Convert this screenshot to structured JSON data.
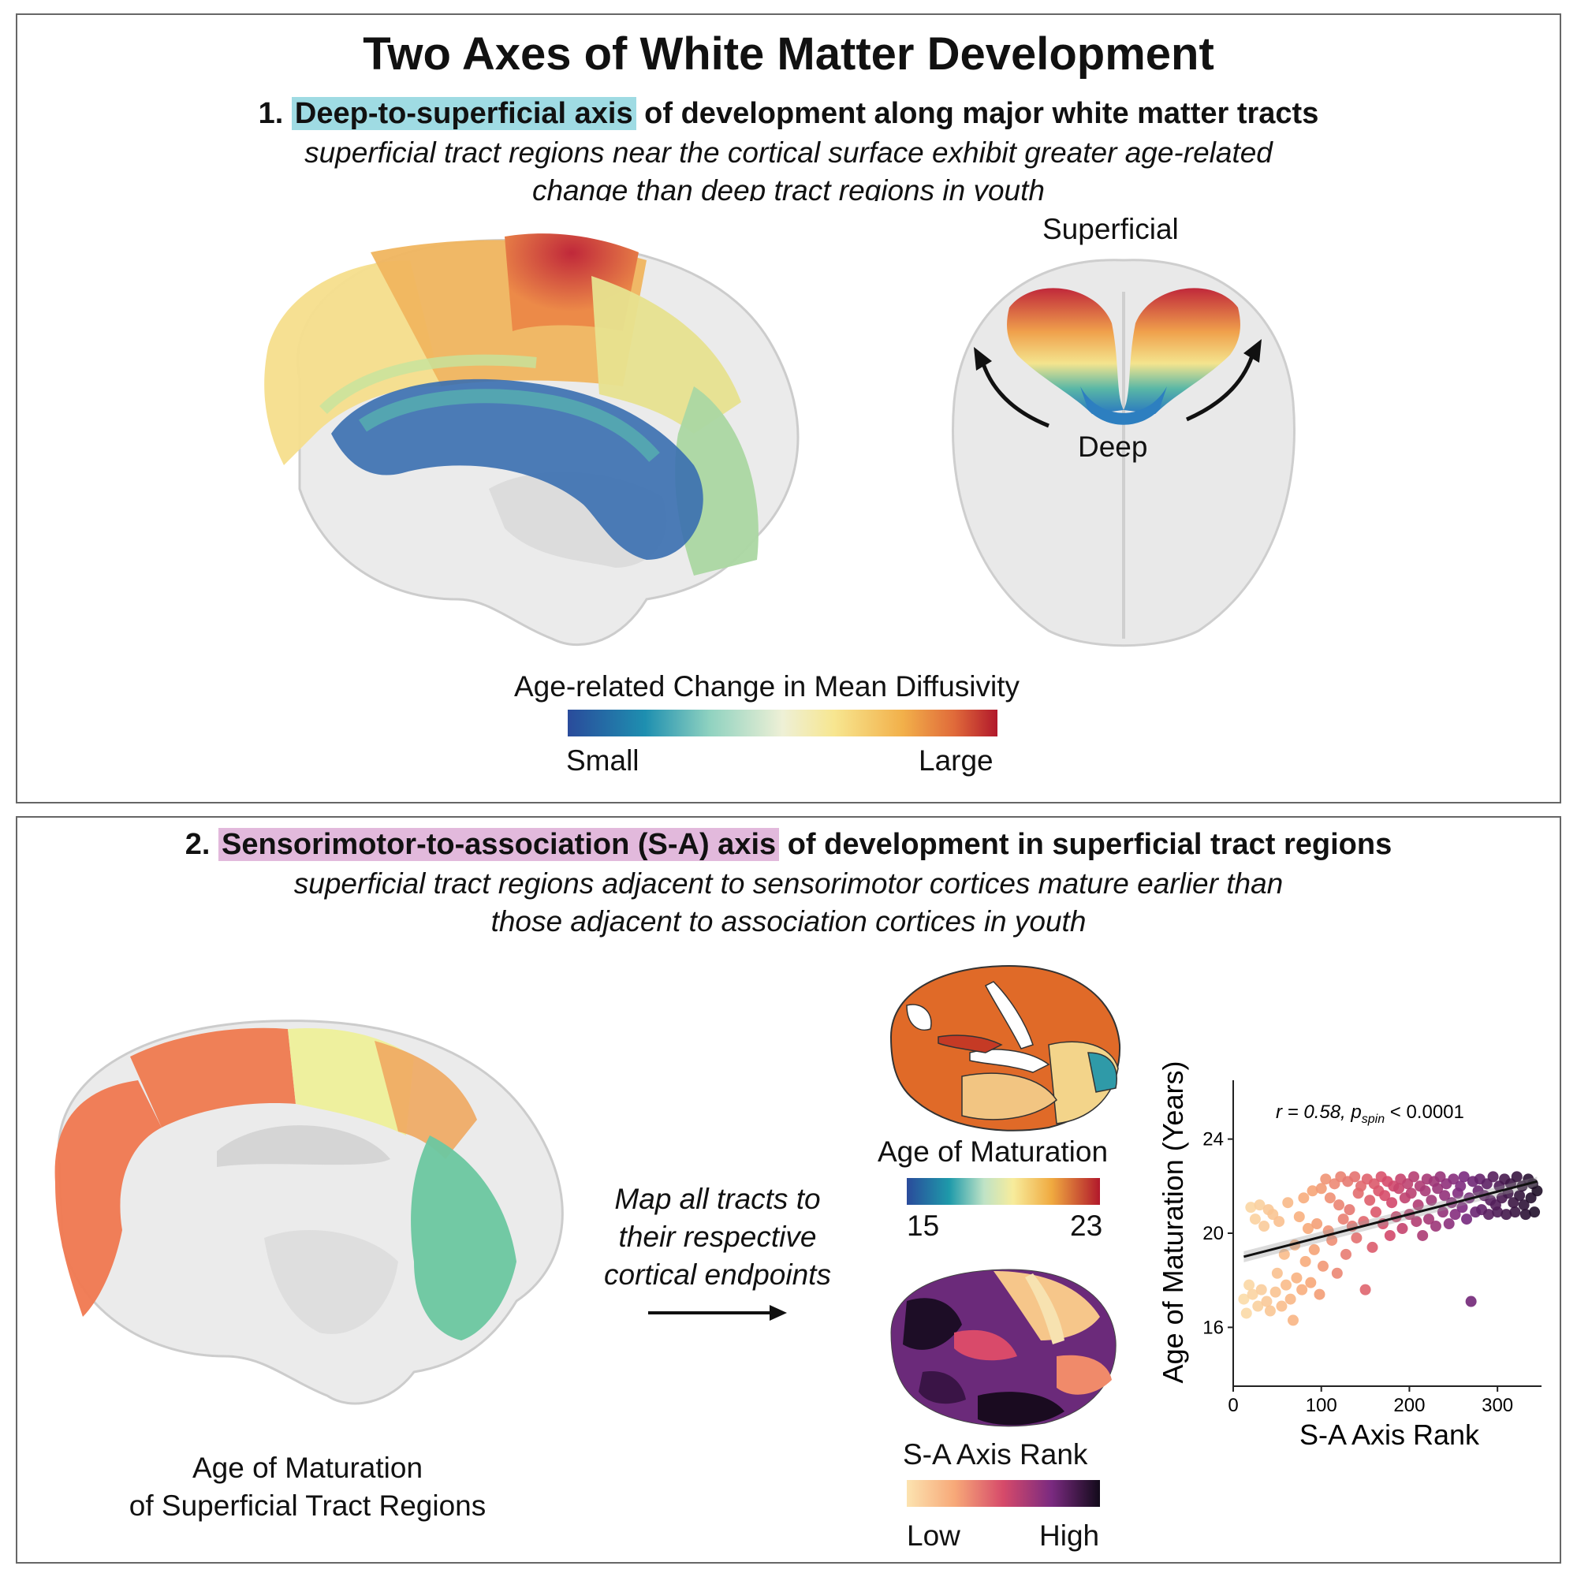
{
  "title": "Two Axes of White Matter Development",
  "section1": {
    "number": "1.",
    "highlight": "Deep-to-superficial axis",
    "rest": "of development along major white matter tracts",
    "subtitle_line1": "superficial tract regions near the cortical surface exhibit greater age-related",
    "subtitle_line2": "change than deep tract regions in youth",
    "label_superficial": "Superficial",
    "label_deep": "Deep",
    "colorbar_title": "Age-related Change in Mean Diffusivity",
    "colorbar_low": "Small",
    "colorbar_high": "Large",
    "colors": {
      "highlight": "#9fdbe3"
    }
  },
  "section2": {
    "number": "2.",
    "highlight": "Sensorimotor-to-association (S-A) axis",
    "rest": "of development in superficial tract regions",
    "subtitle_line1": "superficial tract regions adjacent to sensorimotor cortices mature earlier than",
    "subtitle_line2": "those adjacent to association cortices in youth",
    "brain_caption_line1": "Age of Maturation",
    "brain_caption_line2": "of Superficial Tract Regions",
    "map_text_line1": "Map all tracts to",
    "map_text_line2": "their respective",
    "map_text_line3": "cortical endpoints",
    "maturation_title": "Age of Maturation",
    "maturation_low": "15",
    "maturation_high": "23",
    "sa_title": "S-A Axis Rank",
    "sa_low": "Low",
    "sa_high": "High",
    "colors": {
      "highlight": "#e2b9dc"
    }
  },
  "chart_data": {
    "type": "scatter",
    "xlabel": "S-A Axis Rank",
    "ylabel": "Age of Maturation (Years)",
    "annotation_r": "r = 0.58, ",
    "annotation_p": "p",
    "annotation_sub": "spin",
    "annotation_tail": " < 0.0001",
    "xlim": [
      0,
      350
    ],
    "ylim": [
      13.5,
      26.5
    ],
    "xticks": [
      0,
      100,
      200,
      300
    ],
    "yticks": [
      16,
      20,
      24
    ],
    "fit_line": {
      "x0": 12,
      "y0": 19.0,
      "x1": 345,
      "y1": 22.2
    },
    "points": [
      [
        12,
        17.2
      ],
      [
        15,
        16.6
      ],
      [
        18,
        17.8
      ],
      [
        20,
        21.1
      ],
      [
        22,
        17.4
      ],
      [
        25,
        20.6
      ],
      [
        28,
        16.9
      ],
      [
        30,
        21.2
      ],
      [
        32,
        17.6
      ],
      [
        35,
        20.3
      ],
      [
        38,
        17.1
      ],
      [
        40,
        21.0
      ],
      [
        42,
        16.7
      ],
      [
        45,
        20.8
      ],
      [
        48,
        17.5
      ],
      [
        50,
        18.3
      ],
      [
        52,
        20.5
      ],
      [
        55,
        16.9
      ],
      [
        58,
        19.1
      ],
      [
        60,
        17.8
      ],
      [
        62,
        21.3
      ],
      [
        65,
        17.2
      ],
      [
        68,
        16.3
      ],
      [
        70,
        19.5
      ],
      [
        72,
        18.1
      ],
      [
        75,
        20.7
      ],
      [
        78,
        17.6
      ],
      [
        80,
        21.5
      ],
      [
        82,
        18.8
      ],
      [
        85,
        20.2
      ],
      [
        88,
        17.9
      ],
      [
        90,
        21.8
      ],
      [
        92,
        19.3
      ],
      [
        95,
        20.4
      ],
      [
        98,
        17.4
      ],
      [
        100,
        21.9
      ],
      [
        102,
        18.6
      ],
      [
        105,
        22.3
      ],
      [
        108,
        20.1
      ],
      [
        110,
        21.5
      ],
      [
        112,
        19.7
      ],
      [
        115,
        22.1
      ],
      [
        118,
        18.3
      ],
      [
        120,
        21.2
      ],
      [
        122,
        22.4
      ],
      [
        125,
        20.6
      ],
      [
        128,
        19.1
      ],
      [
        130,
        22.2
      ],
      [
        132,
        21.0
      ],
      [
        135,
        20.3
      ],
      [
        138,
        22.4
      ],
      [
        140,
        19.8
      ],
      [
        142,
        21.7
      ],
      [
        145,
        22.0
      ],
      [
        148,
        20.5
      ],
      [
        150,
        17.6
      ],
      [
        152,
        22.3
      ],
      [
        155,
        21.4
      ],
      [
        158,
        19.4
      ],
      [
        160,
        22.1
      ],
      [
        162,
        20.9
      ],
      [
        165,
        21.8
      ],
      [
        168,
        22.4
      ],
      [
        170,
        20.4
      ],
      [
        172,
        21.6
      ],
      [
        175,
        22.2
      ],
      [
        178,
        19.9
      ],
      [
        180,
        21.3
      ],
      [
        182,
        22.0
      ],
      [
        185,
        20.7
      ],
      [
        188,
        21.9
      ],
      [
        190,
        22.3
      ],
      [
        192,
        20.2
      ],
      [
        195,
        21.5
      ],
      [
        198,
        22.1
      ],
      [
        200,
        20.8
      ],
      [
        202,
        21.7
      ],
      [
        205,
        22.4
      ],
      [
        208,
        20.5
      ],
      [
        210,
        21.2
      ],
      [
        212,
        22.0
      ],
      [
        215,
        19.9
      ],
      [
        218,
        21.8
      ],
      [
        220,
        22.3
      ],
      [
        222,
        20.6
      ],
      [
        225,
        21.4
      ],
      [
        228,
        22.2
      ],
      [
        230,
        20.3
      ],
      [
        232,
        21.9
      ],
      [
        235,
        22.4
      ],
      [
        238,
        20.9
      ],
      [
        240,
        21.6
      ],
      [
        242,
        22.1
      ],
      [
        245,
        20.4
      ],
      [
        248,
        21.3
      ],
      [
        250,
        22.3
      ],
      [
        252,
        20.8
      ],
      [
        255,
        21.7
      ],
      [
        258,
        22.0
      ],
      [
        260,
        21.1
      ],
      [
        262,
        22.4
      ],
      [
        265,
        20.6
      ],
      [
        268,
        21.5
      ],
      [
        270,
        17.1
      ],
      [
        272,
        22.2
      ],
      [
        275,
        20.9
      ],
      [
        278,
        21.8
      ],
      [
        280,
        22.3
      ],
      [
        282,
        21.0
      ],
      [
        285,
        21.6
      ],
      [
        288,
        22.1
      ],
      [
        290,
        20.8
      ],
      [
        292,
        21.4
      ],
      [
        295,
        22.4
      ],
      [
        298,
        21.2
      ],
      [
        300,
        20.9
      ],
      [
        302,
        22.0
      ],
      [
        305,
        21.5
      ],
      [
        308,
        22.3
      ],
      [
        310,
        20.8
      ],
      [
        312,
        21.7
      ],
      [
        315,
        22.1
      ],
      [
        318,
        21.3
      ],
      [
        320,
        20.9
      ],
      [
        322,
        22.4
      ],
      [
        325,
        21.6
      ],
      [
        328,
        22.0
      ],
      [
        330,
        21.2
      ],
      [
        332,
        20.8
      ],
      [
        335,
        22.3
      ],
      [
        338,
        21.5
      ],
      [
        340,
        22.1
      ],
      [
        342,
        20.9
      ],
      [
        345,
        21.8
      ]
    ]
  }
}
